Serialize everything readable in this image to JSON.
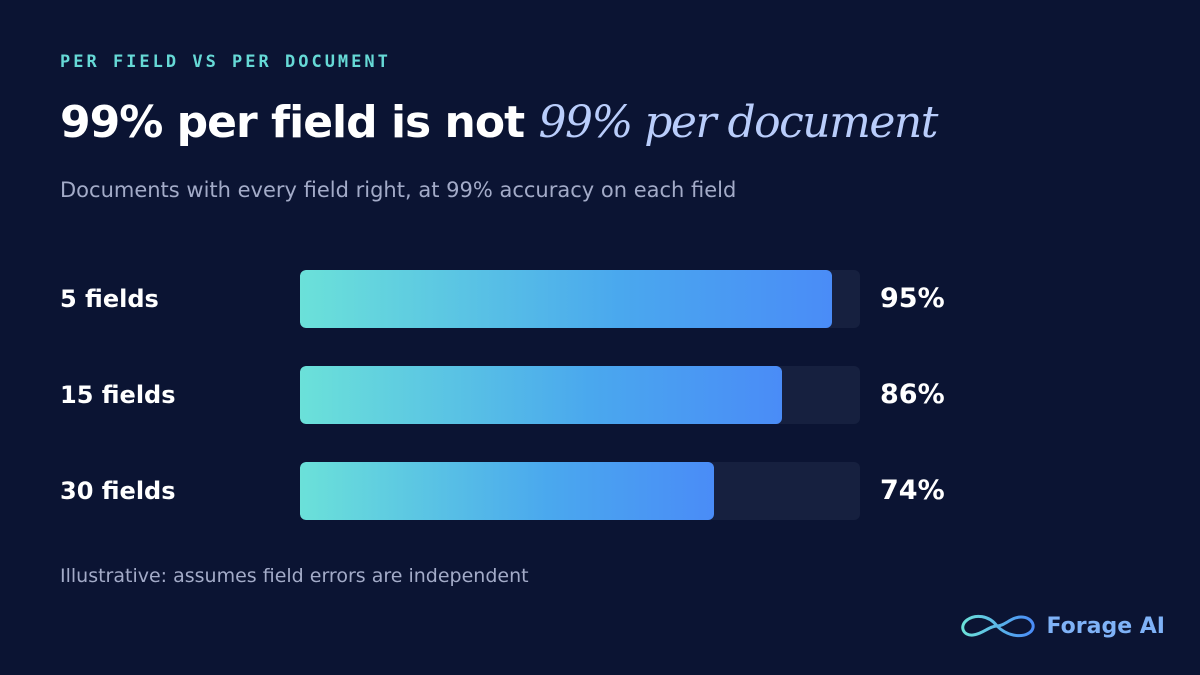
{
  "eyebrow": "PER FIELD VS PER DOCUMENT",
  "title": {
    "main": "99% per field is not",
    "accent": "99% per document"
  },
  "subtitle": "Documents with every field right, at 99% accuracy on each field",
  "footnote": "Illustrative: assumes field errors are independent",
  "brand": {
    "name": "Forage AI",
    "logo_icon": "infinity-logo-icon"
  },
  "colors": {
    "background": "#0b1433",
    "eyebrow": "#66d9d6",
    "accent": "#b9cdfb",
    "bar_gradient_start": "#6be1d9",
    "bar_gradient_end": "#4a8cf7",
    "track": "#16203f"
  },
  "chart_data": {
    "type": "bar",
    "orientation": "horizontal",
    "title": "99% per field is not 99% per document",
    "categories": [
      "5 fields",
      "15 fields",
      "30 fields"
    ],
    "values": [
      95,
      86,
      74
    ],
    "value_labels": [
      "95%",
      "86%",
      "74%"
    ],
    "xlim": [
      0,
      100
    ],
    "grid": false
  }
}
